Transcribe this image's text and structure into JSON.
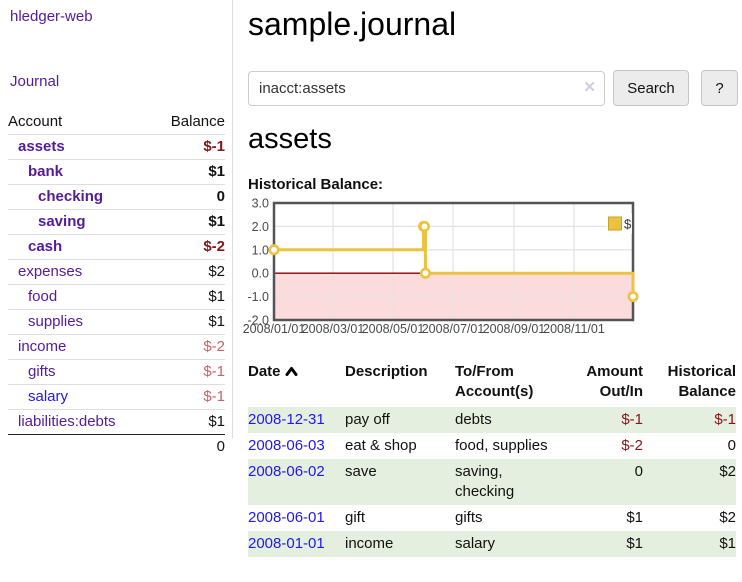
{
  "app": {
    "title": "hledger-web"
  },
  "sidebar": {
    "journal_link": "Journal",
    "accounts": {
      "col_account": "Account",
      "col_balance": "Balance",
      "rows": [
        {
          "name": "assets",
          "indent": 0,
          "bold": true,
          "balance": "$-1",
          "neg": "strong",
          "link": "purple"
        },
        {
          "name": "bank",
          "indent": 1,
          "bold": true,
          "balance": "$1",
          "neg": "none",
          "link": "purple"
        },
        {
          "name": "checking",
          "indent": 2,
          "bold": true,
          "balance": "0",
          "neg": "none",
          "link": "purple"
        },
        {
          "name": "saving",
          "indent": 2,
          "bold": true,
          "balance": "$1",
          "neg": "none",
          "link": "purple"
        },
        {
          "name": "cash",
          "indent": 1,
          "bold": true,
          "balance": "$-2",
          "neg": "strong",
          "link": "purple"
        },
        {
          "name": "expenses",
          "indent": 0,
          "bold": false,
          "balance": "$2",
          "neg": "none",
          "link": "purple"
        },
        {
          "name": "food",
          "indent": 1,
          "bold": false,
          "balance": "$1",
          "neg": "none",
          "link": "purple"
        },
        {
          "name": "supplies",
          "indent": 1,
          "bold": false,
          "balance": "$1",
          "neg": "none",
          "link": "purple"
        },
        {
          "name": "income",
          "indent": 0,
          "bold": false,
          "balance": "$-2",
          "neg": "muted",
          "link": "purple"
        },
        {
          "name": "gifts",
          "indent": 1,
          "bold": false,
          "balance": "$-1",
          "neg": "muted",
          "link": "purple"
        },
        {
          "name": "salary",
          "indent": 1,
          "bold": false,
          "balance": "$-1",
          "neg": "muted",
          "link": "blue"
        },
        {
          "name": "liabilities:debts",
          "indent": 0,
          "bold": false,
          "balance": "$1",
          "neg": "none",
          "link": "purple"
        }
      ],
      "total": "0"
    }
  },
  "header": {
    "title": "sample.journal"
  },
  "search": {
    "value": "inacct:assets",
    "clear_label": "✕",
    "button": "Search",
    "help": "?",
    "clear_icon": "clear-x-icon"
  },
  "account_page": {
    "title": "assets",
    "chart_heading": "Historical Balance:"
  },
  "chart_data": {
    "type": "line",
    "title": "Historical Balance",
    "legend": [
      {
        "label": "$",
        "color": "#edc240"
      }
    ],
    "legend_position": "top-right",
    "grid": true,
    "xlim": [
      "2008-01-01",
      "2008-12-31"
    ],
    "ylim": [
      -2,
      3
    ],
    "y_ticks": [
      {
        "v": 3,
        "label": "3.0"
      },
      {
        "v": 2,
        "label": "2.0"
      },
      {
        "v": 1,
        "label": "1.0"
      },
      {
        "v": 0,
        "label": "0.0"
      },
      {
        "v": -1,
        "label": "-1.0"
      },
      {
        "v": -2,
        "label": "-2.0"
      }
    ],
    "x_ticks": [
      {
        "date": "2008-01-01",
        "label": "2008/01/01"
      },
      {
        "date": "2008-03-01",
        "label": "2008/03/01"
      },
      {
        "date": "2008-05-01",
        "label": "2008/05/01"
      },
      {
        "date": "2008-07-01",
        "label": "2008/07/01"
      },
      {
        "date": "2008-09-01",
        "label": "2008/09/01"
      },
      {
        "date": "2008-11-01",
        "label": "2008/11/01"
      }
    ],
    "series": [
      {
        "name": "$",
        "color": "#edc240",
        "style": "step",
        "points": [
          [
            "2008-01-01",
            1
          ],
          [
            "2008-06-01",
            2
          ],
          [
            "2008-06-02",
            2
          ],
          [
            "2008-06-03",
            0
          ],
          [
            "2008-12-31",
            -1
          ]
        ]
      }
    ],
    "negative_region_fill": "#fbdbdb",
    "zero_line_color": "#8b0000",
    "grid_color": "#e4e4e4",
    "border_color": "#545454"
  },
  "register": {
    "headers": {
      "date": "Date",
      "description": "Description",
      "tofrom": "To/From Account(s)",
      "amount": "Amount Out/In",
      "balance": "Historical Balance"
    },
    "sort_icon": "chevron-up-icon",
    "rows": [
      {
        "date": "2008-12-31",
        "description": "pay off",
        "accounts": "debts",
        "amount": "$-1",
        "amount_neg": true,
        "balance": "$-1",
        "balance_neg": true
      },
      {
        "date": "2008-06-03",
        "description": "eat & shop",
        "accounts": "food, supplies",
        "amount": "$-2",
        "amount_neg": true,
        "balance": "0",
        "balance_neg": false
      },
      {
        "date": "2008-06-02",
        "description": "save",
        "accounts": "saving, checking",
        "amount": "0",
        "amount_neg": false,
        "balance": "$2",
        "balance_neg": false
      },
      {
        "date": "2008-06-01",
        "description": "gift",
        "accounts": "gifts",
        "amount": "$1",
        "amount_neg": false,
        "balance": "$2",
        "balance_neg": false
      },
      {
        "date": "2008-01-01",
        "description": "income",
        "accounts": "salary",
        "amount": "$1",
        "amount_neg": false,
        "balance": "$1",
        "balance_neg": false
      }
    ]
  },
  "colors": {
    "link_purple": "#551b9b",
    "link_blue": "#2018ee",
    "negative_strong": "#881414",
    "negative_muted": "#c56469",
    "row_alt_green": "#e4efdf",
    "chart_gold": "#edc240",
    "divider": "#dddddd"
  }
}
